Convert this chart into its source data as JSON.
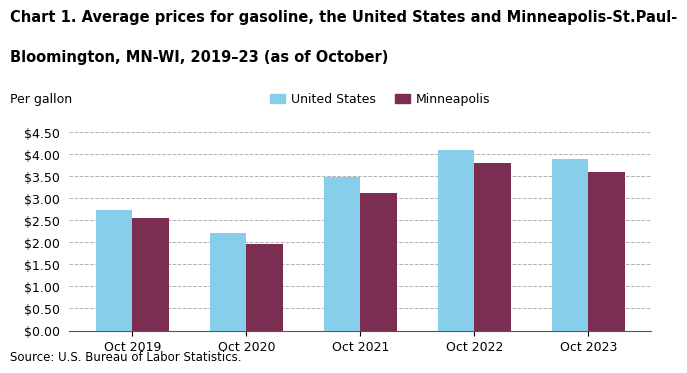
{
  "title_line1": "Chart 1. Average prices for gasoline, the United States and Minneapolis-St.Paul-",
  "title_line2": "Bloomington, MN-WI, 2019–23 (as of October)",
  "ylabel": "Per gallon",
  "categories": [
    "Oct 2019",
    "Oct 2020",
    "Oct 2021",
    "Oct 2022",
    "Oct 2023"
  ],
  "us_values": [
    2.72,
    2.2,
    3.48,
    4.1,
    3.88
  ],
  "mpls_values": [
    2.54,
    1.96,
    3.12,
    3.8,
    3.6
  ],
  "us_color": "#87CEEB",
  "mpls_color": "#7B2D52",
  "us_label": "United States",
  "mpls_label": "Minneapolis",
  "ylim": [
    0,
    4.5
  ],
  "yticks": [
    0.0,
    0.5,
    1.0,
    1.5,
    2.0,
    2.5,
    3.0,
    3.5,
    4.0,
    4.5
  ],
  "source": "Source: U.S. Bureau of Labor Statistics.",
  "background_color": "#ffffff",
  "grid_color": "#b0b0b0",
  "bar_width": 0.32,
  "title_fontsize": 10.5,
  "tick_fontsize": 9,
  "source_fontsize": 8.5
}
